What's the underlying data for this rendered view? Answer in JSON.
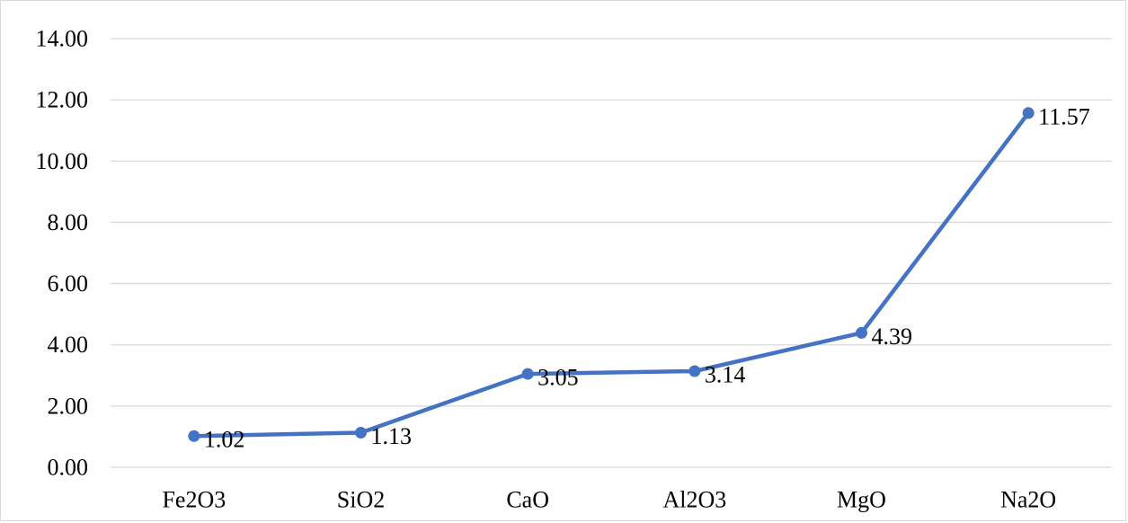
{
  "chart_data": {
    "type": "line",
    "title": "",
    "xlabel": "",
    "ylabel": "",
    "categories": [
      "Fe2O3",
      "SiO2",
      "CaO",
      "Al2O3",
      "MgO",
      "Na2O"
    ],
    "series": [
      {
        "values": [
          1.02,
          1.13,
          3.05,
          3.14,
          4.39,
          11.57
        ],
        "color": "#4472C4",
        "data_labels": [
          "1.02",
          "1.13",
          "3.05",
          "3.14",
          "4.39",
          "11.57"
        ]
      }
    ],
    "ylim": [
      0,
      14
    ],
    "yticks": [
      0,
      2,
      4,
      6,
      8,
      10,
      12,
      14
    ],
    "ytick_labels": [
      "0.00",
      "2.00",
      "4.00",
      "6.00",
      "8.00",
      "10.00",
      "12.00",
      "14.00"
    ],
    "grid": true,
    "gridline_color": "#d9d9d9",
    "legend": "none",
    "markers": true
  }
}
